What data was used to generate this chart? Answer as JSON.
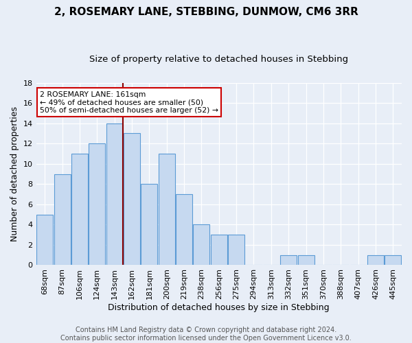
{
  "title": "2, ROSEMARY LANE, STEBBING, DUNMOW, CM6 3RR",
  "subtitle": "Size of property relative to detached houses in Stebbing",
  "xlabel": "Distribution of detached houses by size in Stebbing",
  "ylabel": "Number of detached properties",
  "bar_color": "#c6d9f0",
  "bar_edge_color": "#5b9bd5",
  "background_color": "#e8eef7",
  "grid_color": "#ffffff",
  "vline_color": "#8b0000",
  "annotation_text": "2 ROSEMARY LANE: 161sqm\n← 49% of detached houses are smaller (50)\n50% of semi-detached houses are larger (52) →",
  "annotation_box_color": "#ffffff",
  "annotation_box_edge": "#cc0000",
  "bin_labels": [
    "68sqm",
    "87sqm",
    "106sqm",
    "124sqm",
    "143sqm",
    "162sqm",
    "181sqm",
    "200sqm",
    "219sqm",
    "238sqm",
    "256sqm",
    "275sqm",
    "294sqm",
    "313sqm",
    "332sqm",
    "351sqm",
    "370sqm",
    "388sqm",
    "407sqm",
    "426sqm",
    "445sqm"
  ],
  "bar_heights": [
    5,
    9,
    11,
    12,
    14,
    13,
    8,
    11,
    7,
    4,
    3,
    3,
    0,
    0,
    1,
    1,
    0,
    0,
    0,
    1,
    1
  ],
  "vline_bar_index": 5,
  "ylim": [
    0,
    18
  ],
  "yticks": [
    0,
    2,
    4,
    6,
    8,
    10,
    12,
    14,
    16,
    18
  ],
  "footer_text": "Contains HM Land Registry data © Crown copyright and database right 2024.\nContains public sector information licensed under the Open Government Licence v3.0.",
  "title_fontsize": 11,
  "subtitle_fontsize": 9.5,
  "xlabel_fontsize": 9,
  "ylabel_fontsize": 9,
  "tick_fontsize": 8,
  "footer_fontsize": 7
}
